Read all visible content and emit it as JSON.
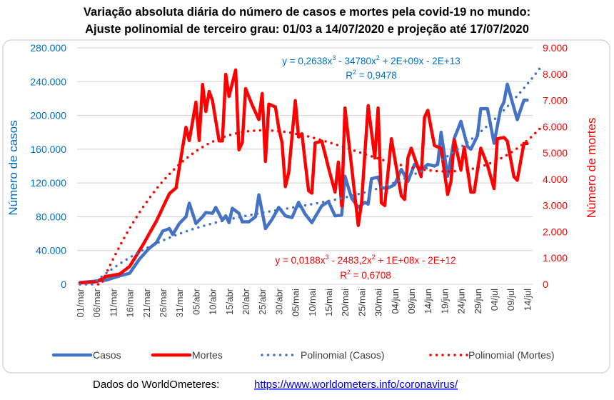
{
  "chart_data": {
    "type": "line",
    "title": "Variação absoluta diária do número de casos e mortes pela covid-19 no mundo:",
    "subtitle": "Ajuste polinomial de terceiro grau: 01/03 a 14/07/2020 e projeção até 17/07/2020",
    "x_start": "01/mar",
    "x_days_data": 136,
    "x_days_trend": 139,
    "x_ticks": [
      "01/mar",
      "06/mar",
      "11/mar",
      "16/mar",
      "21/mar",
      "26/mar",
      "31/mar",
      "05/abr",
      "10/abr",
      "15/abr",
      "20/abr",
      "25/abr",
      "30/abr",
      "05/mai",
      "10/mai",
      "15/mai",
      "20/mai",
      "25/mai",
      "30/mai",
      "04/jun",
      "09/jun",
      "14/jun",
      "19/jun",
      "24/jun",
      "29/jun",
      "04/jul",
      "09/jul",
      "14/jul"
    ],
    "y_left": {
      "label": "Número de casos",
      "range": [
        0,
        280000
      ],
      "ticks": [
        "0",
        "40.000",
        "80.000",
        "120.000",
        "160.000",
        "200.000",
        "240.000",
        "280.000"
      ]
    },
    "y_right": {
      "label": "Número de mortes",
      "range": [
        0,
        9000
      ],
      "ticks": [
        "0",
        "1.000",
        "2.000",
        "3.000",
        "4.000",
        "5.000",
        "6.000",
        "7.000",
        "8.000",
        "9.000"
      ]
    },
    "grid": true,
    "legend_position": "bottom",
    "series": [
      {
        "name": "Casos",
        "axis": "left",
        "color": "#4472C4",
        "points": [
          [
            0,
            2000
          ],
          [
            8,
            5000
          ],
          [
            12,
            10000
          ],
          [
            15,
            13000
          ],
          [
            18,
            30000
          ],
          [
            21,
            43000
          ],
          [
            23,
            49000
          ],
          [
            25,
            63000
          ],
          [
            27,
            66000
          ],
          [
            28,
            59000
          ],
          [
            30,
            72000
          ],
          [
            32,
            80000
          ],
          [
            33,
            96000
          ],
          [
            35,
            72000
          ],
          [
            37,
            80000
          ],
          [
            38,
            85000
          ],
          [
            40,
            84000
          ],
          [
            41,
            91000
          ],
          [
            43,
            76000
          ],
          [
            44,
            81000
          ],
          [
            45,
            73000
          ],
          [
            46,
            90000
          ],
          [
            48,
            84000
          ],
          [
            49,
            74000
          ],
          [
            51,
            74000
          ],
          [
            53,
            80000
          ],
          [
            54,
            106000
          ],
          [
            56,
            66000
          ],
          [
            58,
            77000
          ],
          [
            60,
            91000
          ],
          [
            62,
            81000
          ],
          [
            64,
            79000
          ],
          [
            66,
            97000
          ],
          [
            68,
            83000
          ],
          [
            70,
            73000
          ],
          [
            73,
            93000
          ],
          [
            75,
            98000
          ],
          [
            77,
            81000
          ],
          [
            79,
            82000
          ],
          [
            80,
            128000
          ],
          [
            82,
            102000
          ],
          [
            84,
            91000
          ],
          [
            86,
            97000
          ],
          [
            87,
            95000
          ],
          [
            88,
            125000
          ],
          [
            90,
            127000
          ],
          [
            91,
            114000
          ],
          [
            93,
            114000
          ],
          [
            95,
            118000
          ],
          [
            97,
            136000
          ],
          [
            99,
            122000
          ],
          [
            101,
            142000
          ],
          [
            103,
            136000
          ],
          [
            105,
            142000
          ],
          [
            107,
            140000
          ],
          [
            108,
            142000
          ],
          [
            109,
            180000
          ],
          [
            111,
            128000
          ],
          [
            113,
            173000
          ],
          [
            115,
            193000
          ],
          [
            117,
            163000
          ],
          [
            118,
            160000
          ],
          [
            120,
            176000
          ],
          [
            121,
            208000
          ],
          [
            123,
            208000
          ],
          [
            125,
            167000
          ],
          [
            127,
            208000
          ],
          [
            128,
            216000
          ],
          [
            129,
            237000
          ],
          [
            132,
            195000
          ],
          [
            134,
            218000
          ],
          [
            135,
            218000
          ]
        ]
      },
      {
        "name": "Mortes",
        "axis": "right",
        "color": "#FF0000",
        "points": [
          [
            0,
            50
          ],
          [
            5,
            100
          ],
          [
            8,
            300
          ],
          [
            12,
            390
          ],
          [
            15,
            680
          ],
          [
            19,
            1500
          ],
          [
            23,
            2390
          ],
          [
            27,
            3450
          ],
          [
            29,
            3670
          ],
          [
            32,
            5980
          ],
          [
            33,
            5470
          ],
          [
            35,
            6930
          ],
          [
            36,
            5470
          ],
          [
            37,
            7610
          ],
          [
            38,
            6580
          ],
          [
            39,
            7340
          ],
          [
            40,
            7000
          ],
          [
            42,
            5460
          ],
          [
            43,
            5460
          ],
          [
            44,
            7990
          ],
          [
            45,
            7150
          ],
          [
            47,
            8160
          ],
          [
            48,
            5120
          ],
          [
            49,
            5400
          ],
          [
            50,
            7450
          ],
          [
            52,
            6820
          ],
          [
            54,
            6270
          ],
          [
            55,
            7260
          ],
          [
            56,
            4680
          ],
          [
            57,
            6860
          ],
          [
            59,
            6750
          ],
          [
            60,
            5950
          ],
          [
            61,
            5400
          ],
          [
            62,
            3720
          ],
          [
            63,
            4240
          ],
          [
            65,
            6990
          ],
          [
            66,
            5610
          ],
          [
            67,
            5730
          ],
          [
            69,
            3560
          ],
          [
            70,
            3470
          ],
          [
            71,
            5380
          ],
          [
            73,
            5450
          ],
          [
            75,
            4450
          ],
          [
            77,
            3510
          ],
          [
            78,
            4650
          ],
          [
            79,
            2980
          ],
          [
            80,
            6710
          ],
          [
            84,
            2240
          ],
          [
            85,
            3100
          ],
          [
            87,
            6800
          ],
          [
            89,
            4810
          ],
          [
            90,
            6710
          ],
          [
            91,
            3100
          ],
          [
            92,
            3000
          ],
          [
            94,
            5540
          ],
          [
            97,
            3370
          ],
          [
            98,
            3230
          ],
          [
            99,
            4820
          ],
          [
            100,
            5180
          ],
          [
            103,
            4100
          ],
          [
            104,
            6360
          ],
          [
            105,
            6620
          ],
          [
            107,
            5280
          ],
          [
            109,
            5180
          ],
          [
            111,
            3420
          ],
          [
            112,
            3920
          ],
          [
            113,
            5500
          ],
          [
            115,
            4360
          ],
          [
            116,
            5220
          ],
          [
            118,
            3510
          ],
          [
            119,
            3510
          ],
          [
            121,
            5180
          ],
          [
            123,
            4540
          ],
          [
            125,
            3640
          ],
          [
            126,
            5540
          ],
          [
            128,
            5590
          ],
          [
            129,
            5450
          ],
          [
            131,
            4100
          ],
          [
            132,
            3960
          ],
          [
            134,
            5360
          ],
          [
            135,
            5360
          ]
        ]
      },
      {
        "name": "Polinomial (Casos)",
        "axis": "left",
        "color": "#4472C4",
        "trend_of": "Casos",
        "order": 3
      },
      {
        "name": "Polinomial (Mortes)",
        "axis": "right",
        "color": "#FF0000",
        "trend_of": "Mortes",
        "order": 3
      }
    ],
    "annotations": {
      "casos_eq": [
        "y = 0,2638x",
        "3",
        " - 34780x",
        "2",
        " + 2E+09x - 2E+13"
      ],
      "casos_r2": [
        "R",
        "2",
        " = 0,9478"
      ],
      "mortes_eq": [
        "y = 0,0188x",
        "3",
        " - 2483,2x",
        "2",
        " + 1E+08x - 2E+12"
      ],
      "mortes_r2": [
        "R",
        "2",
        " = 0,6708"
      ]
    }
  },
  "footer": {
    "source_label": "Dados do WorldOmeteres:",
    "source_link": "https://www.worldometers.info/coronavirus/"
  }
}
